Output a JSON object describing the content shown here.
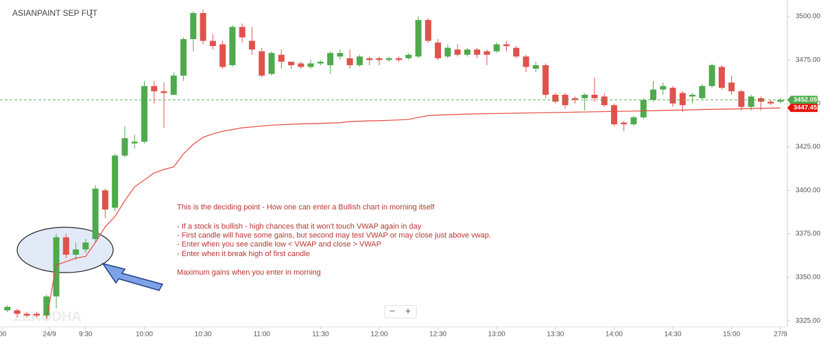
{
  "chart_data": {
    "type": "candlestick",
    "title": "ASIANPAINT SEP FUT",
    "watermark": "ZERODHA",
    "zoom_buttons": [
      "−",
      "+"
    ],
    "annotation": [
      "This is the deciding point - How one can enter a Bullish chart in morning itself",
      "- If a stock is bullish - high chances that it won't touch VWAP again in day",
      "- First candle will have some gains, but second may test VWAP or may close just above vwap.",
      "- Enter when you see candle low < VWAP and close > VWAP",
      "- Enter when it break high of first candle",
      "Maximum gains when you enter in morning"
    ],
    "up_color": "#4eaa4c",
    "down_color": "#e0524d",
    "x": [
      -5,
      -4,
      -3,
      -2,
      -1,
      0,
      1,
      2,
      3,
      4,
      5,
      6,
      7,
      8,
      9,
      10,
      11,
      12,
      13,
      14,
      15,
      16,
      17,
      18,
      19,
      20,
      21,
      22,
      23,
      24,
      25,
      26,
      27,
      28,
      29,
      30,
      31,
      32,
      33,
      34,
      35,
      36,
      37,
      38,
      39,
      40,
      41,
      42,
      43,
      44,
      45,
      46,
      47,
      48,
      49,
      50,
      51,
      52,
      53,
      54,
      55,
      56,
      57,
      58,
      59,
      60,
      61,
      62,
      63,
      64,
      65,
      66,
      67,
      68,
      69,
      70,
      71,
      72,
      73,
      74
    ],
    "open": [
      3331,
      3331,
      3329,
      3329,
      3328,
      3339,
      3373,
      3363,
      3366,
      3372,
      3400,
      3390,
      3420,
      3427,
      3428,
      3460,
      3457,
      3455,
      3466,
      3487,
      3502,
      3486,
      3484,
      3472,
      3494,
      3486,
      3480,
      3467,
      3478,
      3474,
      3473,
      3471,
      3473,
      3472,
      3477,
      3476,
      3472,
      3476,
      3476,
      3475,
      3476,
      3476,
      3477,
      3498,
      3485,
      3477,
      3481,
      3478,
      3481,
      3480,
      3480,
      3484,
      3482,
      3477,
      3470,
      3472,
      3455,
      3455,
      3453,
      3453,
      3455,
      3454,
      3449,
      3439,
      3438,
      3442,
      3452,
      3458,
      3459,
      3456,
      3454,
      3453,
      3460,
      3471,
      3462,
      3457,
      3448,
      3453,
      3451,
      3451
    ],
    "high": [
      3334,
      3332,
      3330,
      3330,
      3340,
      3375,
      3375,
      3370,
      3372,
      3403,
      3401,
      3421,
      3437,
      3432,
      3463,
      3463,
      3462,
      3468,
      3488,
      3503,
      3504,
      3490,
      3486,
      3495,
      3496,
      3494,
      3482,
      3480,
      3481,
      3474,
      3474,
      3475,
      3475,
      3480,
      3481,
      3481,
      3478,
      3477,
      3477,
      3477,
      3477,
      3479,
      3500,
      3499,
      3487,
      3484,
      3484,
      3482,
      3482,
      3481,
      3485,
      3486,
      3483,
      3478,
      3474,
      3473,
      3456,
      3456,
      3454,
      3456,
      3465,
      3456,
      3450,
      3440,
      3443,
      3453,
      3463,
      3462,
      3460,
      3457,
      3456,
      3461,
      3473,
      3472,
      3466,
      3458,
      3455,
      3454,
      3452,
      3453
    ],
    "low": [
      3330,
      3327,
      3327,
      3327,
      3326,
      3332,
      3361,
      3360,
      3364,
      3370,
      3384,
      3388,
      3419,
      3424,
      3427,
      3450,
      3436,
      3455,
      3463,
      3480,
      3484,
      3481,
      3470,
      3471,
      3485,
      3478,
      3465,
      3466,
      3470,
      3470,
      3470,
      3470,
      3472,
      3467,
      3475,
      3470,
      3471,
      3472,
      3472,
      3474,
      3474,
      3475,
      3476,
      3485,
      3475,
      3476,
      3477,
      3477,
      3476,
      3472,
      3479,
      3480,
      3476,
      3468,
      3468,
      3453,
      3450,
      3447,
      3450,
      3446,
      3451,
      3448,
      3437,
      3434,
      3437,
      3441,
      3451,
      3455,
      3448,
      3445,
      3450,
      3452,
      3459,
      3458,
      3455,
      3446,
      3446,
      3446,
      3449,
      3450
    ],
    "close": [
      3333,
      3329,
      3328,
      3328,
      3339,
      3373,
      3363,
      3366,
      3370,
      3401,
      3389,
      3420,
      3430,
      3428,
      3460,
      3457,
      3456,
      3466,
      3487,
      3502,
      3486,
      3483,
      3471,
      3494,
      3488,
      3481,
      3466,
      3479,
      3474,
      3472,
      3471,
      3473,
      3474,
      3479,
      3479,
      3472,
      3477,
      3475,
      3475,
      3476,
      3475,
      3478,
      3498,
      3486,
      3476,
      3482,
      3478,
      3481,
      3478,
      3478,
      3484,
      3483,
      3477,
      3471,
      3472,
      3455,
      3451,
      3449,
      3452,
      3455,
      3453,
      3449,
      3438,
      3438,
      3442,
      3452,
      3458,
      3460,
      3450,
      3449,
      3455,
      3460,
      3472,
      3459,
      3457,
      3448,
      3454,
      3451,
      3450,
      3452
    ],
    "vwap": {
      "color": "#e8453c",
      "values": [
        null,
        null,
        null,
        null,
        3326,
        3357,
        3359,
        3361,
        3362,
        3370,
        3379,
        3385,
        3394,
        3402,
        3406,
        3410,
        3412,
        3413.5,
        3421,
        3426.5,
        3430.5,
        3432.5,
        3434,
        3435,
        3436,
        3436.5,
        3437,
        3437.5,
        3437.8,
        3438,
        3438.2,
        3438.4,
        3438.5,
        3438.7,
        3438.9,
        3439.6,
        3439.8,
        3440,
        3440.1,
        3440.3,
        3440.5,
        3440.8,
        3442,
        3443,
        3443.3,
        3443.5,
        3443.7,
        3443.9,
        3444,
        3444.1,
        3444.2,
        3444.3,
        3444.4,
        3444.5,
        3444.6,
        3444.7,
        3444.8,
        3444.9,
        3445,
        3445.1,
        3445.2,
        3445.3,
        3445.4,
        3445.5,
        3445.6,
        3445.7,
        3445.8,
        3446,
        3446.1,
        3446.2,
        3446.3,
        3446.5,
        3446.6,
        3446.7,
        3446.8,
        3446.9,
        3447,
        3447.2,
        3447.3,
        3447.45
      ]
    },
    "last_price": 3452.05,
    "last_vwap": 3447.45,
    "xlim": [
      -5.75,
      74.7
    ],
    "ylim": [
      3321.5,
      3509.5
    ],
    "xticks": [
      {
        "value": -5.5,
        "label": "00"
      },
      {
        "value": -0.7,
        "label": "24/9"
      },
      {
        "value": 3,
        "label": "9:30"
      },
      {
        "value": 9,
        "label": "10:00"
      },
      {
        "value": 15,
        "label": "10:30"
      },
      {
        "value": 21,
        "label": "11:00"
      },
      {
        "value": 27,
        "label": "11:30"
      },
      {
        "value": 33,
        "label": "12:00"
      },
      {
        "value": 39,
        "label": "12:30"
      },
      {
        "value": 45,
        "label": "13:00"
      },
      {
        "value": 51,
        "label": "13:30"
      },
      {
        "value": 57,
        "label": "14:00"
      },
      {
        "value": 63,
        "label": "14:30"
      },
      {
        "value": 69,
        "label": "15:00"
      },
      {
        "value": 74,
        "label": "27/9"
      }
    ],
    "yticks": [
      {
        "value": 3325,
        "label": "3325.00"
      },
      {
        "value": 3350,
        "label": "3350.00"
      },
      {
        "value": 3375,
        "label": "3375.00"
      },
      {
        "value": 3400,
        "label": "3400.00"
      },
      {
        "value": 3425,
        "label": "3425.00"
      },
      {
        "value": 3450,
        "label": "3450.00"
      },
      {
        "value": 3475,
        "label": "3475.00"
      },
      {
        "value": 3500,
        "label": "3500.00"
      }
    ]
  }
}
